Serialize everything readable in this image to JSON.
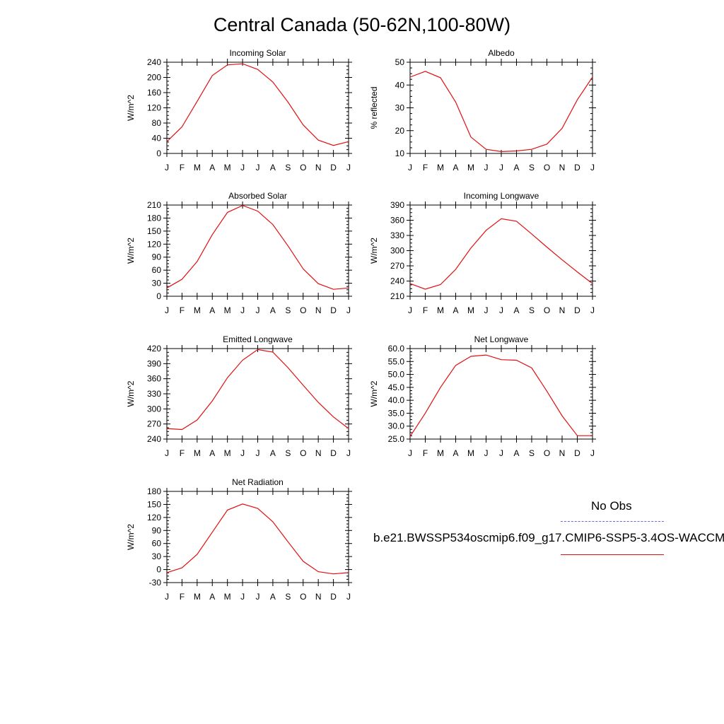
{
  "page": {
    "title": "Central Canada (50-62N,100-80W)",
    "legend": {
      "obs_label": "No Obs",
      "case_label": "b.e21.BWSSP534oscmip6.f09_g17.CMIP6-SSP5-3.4OS-WACCM",
      "obs_color": "#6a6adf",
      "case_color": "#e01010"
    }
  },
  "chart_data": [
    {
      "type": "line",
      "title": "Incoming Solar",
      "ylabel": "W/m^2",
      "categories": [
        "J",
        "F",
        "M",
        "A",
        "M",
        "J",
        "J",
        "A",
        "S",
        "O",
        "N",
        "D",
        "J"
      ],
      "ylim": [
        0,
        240
      ],
      "yticks": [
        "0",
        "40",
        "80",
        "120",
        "160",
        "200",
        "240"
      ],
      "series": [
        {
          "color": "#e01010",
          "values": [
            31,
            70,
            137,
            205,
            233,
            236,
            221,
            188,
            135,
            75,
            35,
            21,
            31
          ]
        }
      ]
    },
    {
      "type": "line",
      "title": "Albedo",
      "ylabel": "% reflected",
      "categories": [
        "J",
        "F",
        "M",
        "A",
        "M",
        "J",
        "J",
        "A",
        "S",
        "O",
        "N",
        "D",
        "J"
      ],
      "ylim": [
        10,
        50
      ],
      "yticks": [
        "10",
        "20",
        "30",
        "40",
        "50"
      ],
      "series": [
        {
          "color": "#e01010",
          "values": [
            43.5,
            46,
            43.2,
            32.5,
            17.2,
            11.8,
            10.8,
            11.1,
            11.8,
            14.1,
            21,
            33.5,
            43.5
          ]
        }
      ]
    },
    {
      "type": "line",
      "title": "Absorbed Solar",
      "ylabel": "W/m^2",
      "categories": [
        "J",
        "F",
        "M",
        "A",
        "M",
        "J",
        "J",
        "A",
        "S",
        "O",
        "N",
        "D",
        "J"
      ],
      "ylim": [
        0,
        210
      ],
      "yticks": [
        "0",
        "30",
        "60",
        "90",
        "120",
        "150",
        "180",
        "210"
      ],
      "series": [
        {
          "color": "#e01010",
          "values": [
            19,
            39,
            80,
            142,
            193,
            209,
            196,
            165,
            116,
            63,
            29,
            16,
            19
          ]
        }
      ]
    },
    {
      "type": "line",
      "title": "Incoming Longwave",
      "ylabel": "W/m^2",
      "categories": [
        "J",
        "F",
        "M",
        "A",
        "M",
        "J",
        "J",
        "A",
        "S",
        "O",
        "N",
        "D",
        "J"
      ],
      "ylim": [
        210,
        390
      ],
      "yticks": [
        "210",
        "240",
        "270",
        "300",
        "330",
        "360",
        "390"
      ],
      "series": [
        {
          "color": "#e01010",
          "values": [
            235,
            224,
            233,
            263,
            305,
            340,
            363,
            358,
            333,
            307,
            282,
            258,
            235
          ]
        }
      ]
    },
    {
      "type": "line",
      "title": "Emitted Longwave",
      "ylabel": "W/m^2",
      "categories": [
        "J",
        "F",
        "M",
        "A",
        "M",
        "J",
        "J",
        "A",
        "S",
        "O",
        "N",
        "D",
        "J"
      ],
      "ylim": [
        240,
        420
      ],
      "yticks": [
        "240",
        "270",
        "300",
        "330",
        "360",
        "390",
        "420"
      ],
      "series": [
        {
          "color": "#e01010",
          "values": [
            261,
            259,
            278,
            316,
            362,
            397,
            418,
            413,
            382,
            347,
            313,
            284,
            261
          ]
        }
      ]
    },
    {
      "type": "line",
      "title": "Net Longwave",
      "ylabel": "W/m^2",
      "categories": [
        "J",
        "F",
        "M",
        "A",
        "M",
        "J",
        "J",
        "A",
        "S",
        "O",
        "N",
        "D",
        "J"
      ],
      "ylim": [
        25,
        60
      ],
      "yticks": [
        "25.0",
        "30.0",
        "35.0",
        "40.0",
        "45.0",
        "50.0",
        "55.0",
        "60.0"
      ],
      "series": [
        {
          "color": "#e01010",
          "values": [
            26,
            35,
            45,
            53.5,
            57,
            57.5,
            55.7,
            55.5,
            52.5,
            43.5,
            34,
            26.3,
            26.3
          ]
        }
      ]
    },
    {
      "type": "line",
      "title": "Net Radiation",
      "ylabel": "W/m^2",
      "categories": [
        "J",
        "F",
        "M",
        "A",
        "M",
        "J",
        "J",
        "A",
        "S",
        "O",
        "N",
        "D",
        "J"
      ],
      "ylim": [
        -30,
        180
      ],
      "yticks": [
        "-30",
        "0",
        "30",
        "60",
        "90",
        "120",
        "150",
        "180"
      ],
      "series": [
        {
          "color": "#e01010",
          "values": [
            -7,
            4,
            35,
            86,
            137,
            151,
            141,
            110,
            64,
            19,
            -5,
            -10,
            -7
          ]
        }
      ]
    }
  ]
}
